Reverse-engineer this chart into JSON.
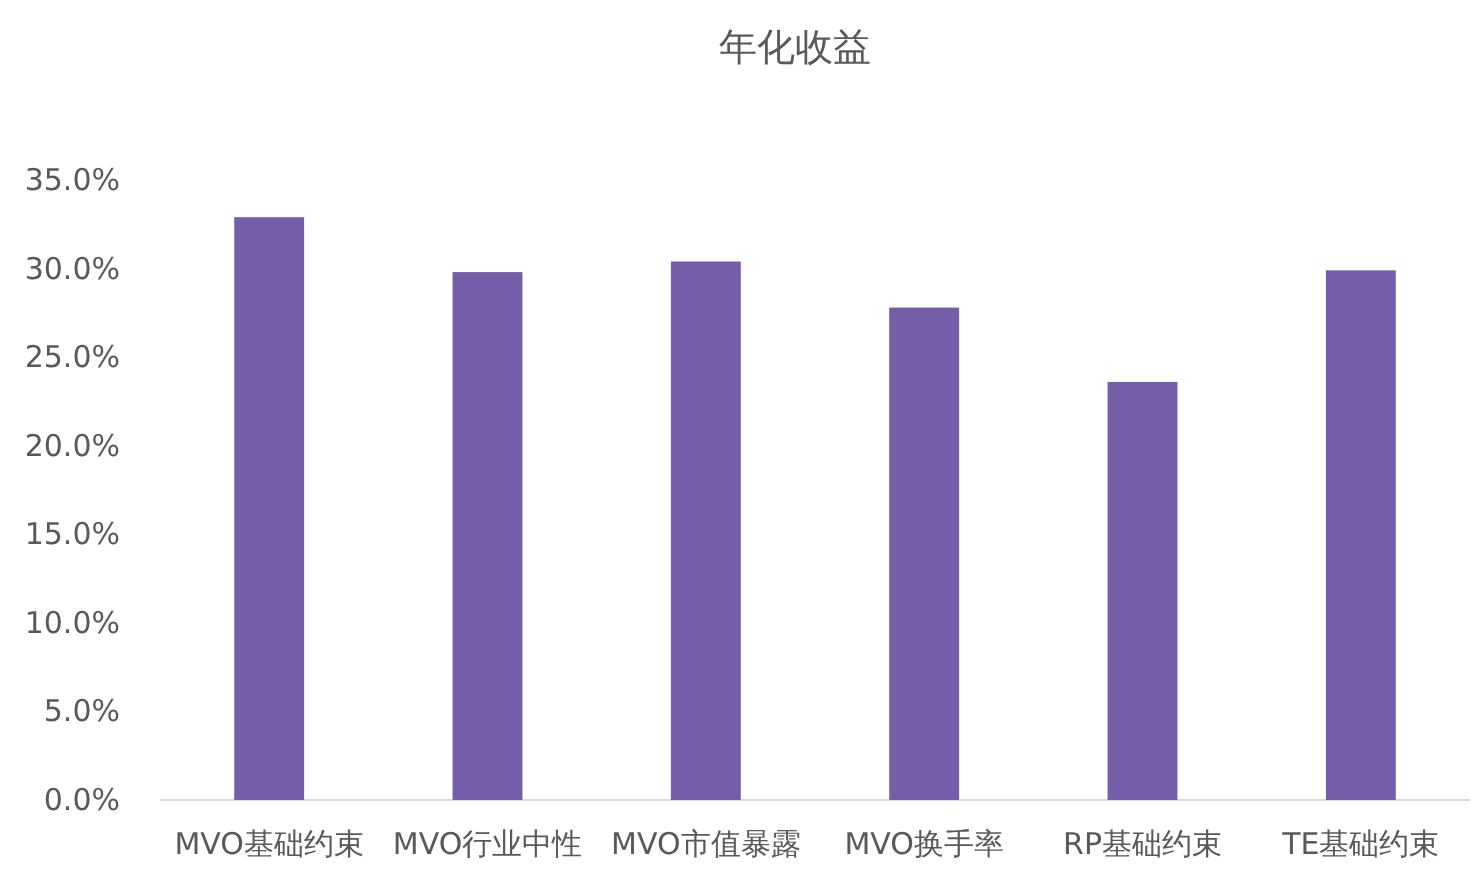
{
  "chart_data": {
    "type": "bar",
    "title": "年化收益",
    "categories": [
      "MVO基础约束",
      "MVO行业中性",
      "MVO市值暴露",
      "MVO换手率",
      "RP基础约束",
      "TE基础约束"
    ],
    "values": [
      32.9,
      29.8,
      30.4,
      27.8,
      23.6,
      29.9
    ],
    "color": "#765ca9",
    "ylim": [
      0,
      35
    ],
    "yticks": [
      {
        "value": 0,
        "label": "0.0%"
      },
      {
        "value": 5,
        "label": "5.0%"
      },
      {
        "value": 10,
        "label": "10.0%"
      },
      {
        "value": 15,
        "label": "15.0%"
      },
      {
        "value": 20,
        "label": "20.0%"
      },
      {
        "value": 25,
        "label": "25.0%"
      },
      {
        "value": 30,
        "label": "30.0%"
      },
      {
        "value": 35,
        "label": "35.0%"
      }
    ],
    "grid": false
  }
}
